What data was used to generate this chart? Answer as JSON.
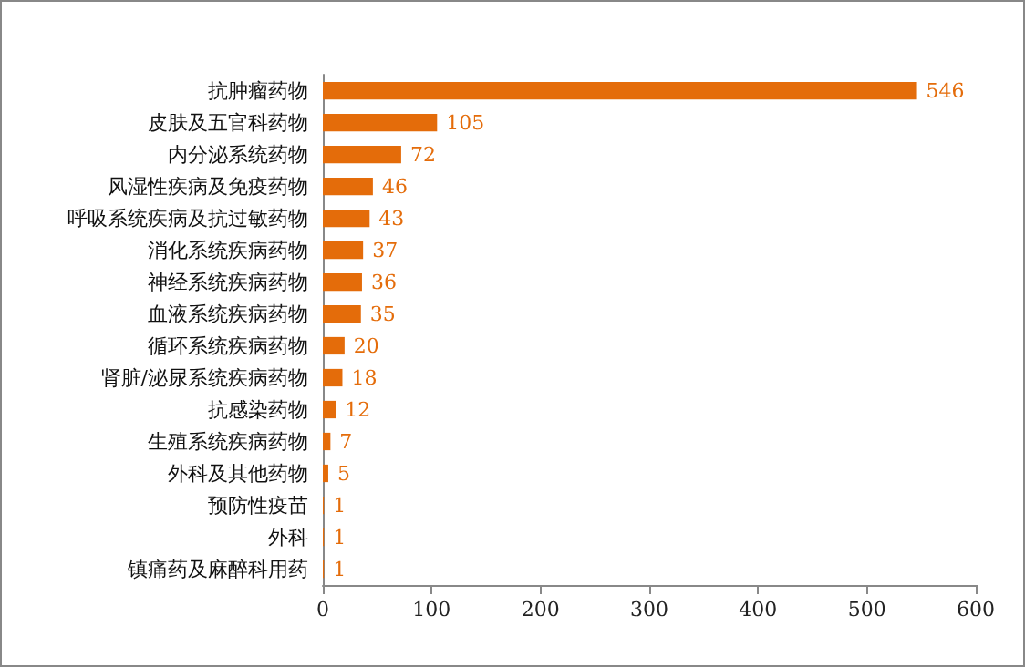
{
  "chart_data": {
    "type": "bar",
    "orientation": "horizontal",
    "categories": [
      "抗肿瘤药物",
      "皮肤及五官科药物",
      "内分泌系统药物",
      "风湿性疾病及免疫药物",
      "呼吸系统疾病及抗过敏药物",
      "消化系统疾病药物",
      "神经系统疾病药物",
      "血液系统疾病药物",
      "循环系统疾病药物",
      "肾脏/泌尿系统疾病药物",
      "抗感染药物",
      "生殖系统疾病药物",
      "外科及其他药物",
      "预防性疫苗",
      "外科",
      "镇痛药及麻醉科用药"
    ],
    "values": [
      546,
      105,
      72,
      46,
      43,
      37,
      36,
      35,
      20,
      18,
      12,
      7,
      5,
      1,
      1,
      1
    ],
    "color": "#e46c0a",
    "xlim": [
      0,
      600
    ],
    "xticks": [
      0,
      100,
      200,
      300,
      400,
      500,
      600
    ],
    "data_labels": true
  }
}
